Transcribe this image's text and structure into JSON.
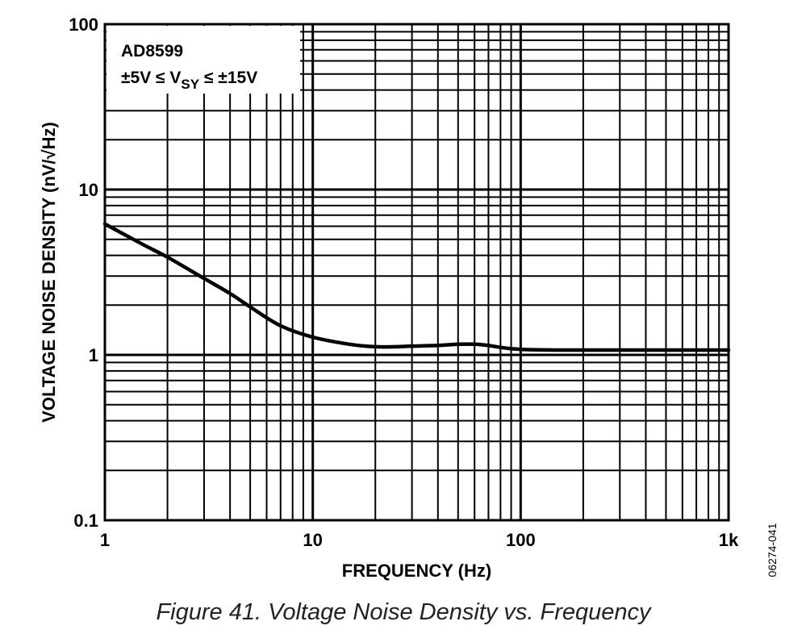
{
  "chart_data": {
    "type": "line",
    "title": "",
    "legend_lines": [
      "AD8599"
    ],
    "legend_supply": {
      "prefix": "±5V ≤ V",
      "subscript": "SY",
      "suffix": " ≤ ±15V"
    },
    "legend_position": "top-left",
    "xlabel": "FREQUENCY (Hz)",
    "ylabel": "VOLTAGE NOISE DENSITY (nV/√Hz)",
    "x_scale": "log",
    "y_scale": "log",
    "xlim": [
      1,
      1000
    ],
    "ylim": [
      0.1,
      100
    ],
    "x_ticks": [
      {
        "value": 1,
        "label": "1"
      },
      {
        "value": 10,
        "label": "10"
      },
      {
        "value": 100,
        "label": "100"
      },
      {
        "value": 1000,
        "label": "1k"
      }
    ],
    "y_ticks": [
      {
        "value": 0.1,
        "label": "0.1"
      },
      {
        "value": 1,
        "label": "1"
      },
      {
        "value": 10,
        "label": "10"
      },
      {
        "value": 100,
        "label": "100"
      }
    ],
    "grid": true,
    "series": [
      {
        "x": [
          1,
          1.5,
          2,
          3,
          4,
          5,
          7,
          10,
          15,
          20,
          25,
          30,
          40,
          50,
          60,
          70,
          80,
          100,
          150,
          200,
          300,
          500,
          1000
        ],
        "y": [
          6.2,
          4.7,
          3.9,
          2.9,
          2.35,
          1.95,
          1.5,
          1.28,
          1.16,
          1.12,
          1.12,
          1.13,
          1.14,
          1.16,
          1.16,
          1.14,
          1.11,
          1.08,
          1.07,
          1.07,
          1.07,
          1.07,
          1.07
        ]
      }
    ]
  },
  "figure_id": "06274-041",
  "caption": "Figure 41. Voltage Noise Density vs. Frequency",
  "colors": {
    "line": "#000000",
    "grid": "#000000",
    "background": "#ffffff"
  }
}
